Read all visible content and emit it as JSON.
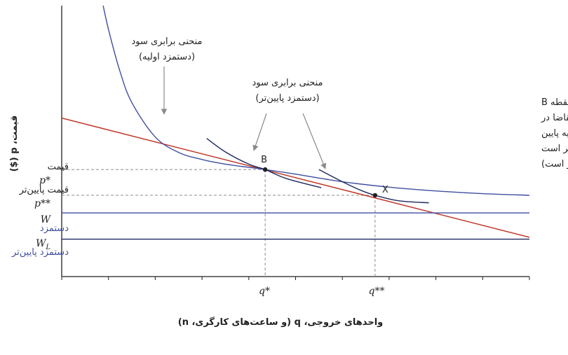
{
  "chart_data": {
    "type": "line",
    "xlabel": "واحدهای خروجی، q (و ساعت‌های کارگری، n)",
    "ylabel": "قیمت، p ($)",
    "xlim": [
      0,
      10
    ],
    "ylim": [
      0,
      10
    ],
    "x_ticks": [
      {
        "label": "q*",
        "value": 4.35
      },
      {
        "label": "q**",
        "value": 6.7
      }
    ],
    "y_ticks": [
      {
        "label": "p*",
        "value": 3.95
      },
      {
        "label": "p**",
        "value": 3.0
      },
      {
        "label": "W",
        "value": 2.35
      },
      {
        "label": "WL",
        "value": 1.38
      }
    ],
    "series": [
      {
        "name": "منحنی تقاضا",
        "role": "demand",
        "color": "#c0392b",
        "x": [
          0,
          10
        ],
        "y": [
          5.85,
          1.45
        ]
      },
      {
        "name": "منحنی برابری سود (دستمزد اولیه)",
        "role": "isoprofit-initial",
        "color": "#3f4fa0",
        "x": [
          0.85,
          1.0,
          1.25,
          1.5,
          2.0,
          2.5,
          3.0,
          3.5,
          4.35,
          5.0,
          6.0,
          7.0,
          8.0,
          9.0,
          10.0
        ],
        "y": [
          10.3,
          9.12,
          7.55,
          6.42,
          5.15,
          4.58,
          4.32,
          4.15,
          3.95,
          3.78,
          3.5,
          3.3,
          3.16,
          3.06,
          3.0
        ]
      },
      {
        "name": "منحنی برابری سود (دستمزد پایین‌تر)",
        "role": "isoprofit-lower",
        "color": "#1e2a5e",
        "x": [
          3.1,
          3.5,
          4.0,
          4.35,
          4.8,
          5.55
        ],
        "y": [
          5.1,
          4.6,
          4.15,
          3.95,
          3.62,
          3.28
        ]
      },
      {
        "name": "منحنی برابری سود (دستمزد پایین‌تر)",
        "role": "isoprofit-lower-2",
        "color": "#1e2a5e",
        "x": [
          5.5,
          6.0,
          6.4,
          6.7,
          7.2,
          7.85
        ],
        "y": [
          3.95,
          3.5,
          3.18,
          3.0,
          2.8,
          2.72
        ]
      },
      {
        "name": "دستمزد",
        "role": "wage",
        "color": "#3f4fa0",
        "x": [
          0,
          10
        ],
        "y": [
          2.35,
          2.35
        ]
      },
      {
        "name": "دستمزد پایین‌تر",
        "role": "lower-wage",
        "color": "#1e2a5e",
        "x": [
          0,
          10
        ],
        "y": [
          1.38,
          1.38
        ]
      }
    ],
    "points": [
      {
        "label": "B",
        "x": 4.35,
        "y": 3.95
      },
      {
        "label": "X",
        "x": 6.7,
        "y": 3.0
      }
    ],
    "annotations": [
      {
        "id": "iso-initial",
        "lines": [
          "منحنی برابری سود",
          "(دستمزد اولیه)"
        ]
      },
      {
        "id": "iso-lower",
        "lines": [
          "منحنی برابری سود",
          "(دستمزد پایین‌تر)"
        ]
      },
      {
        "id": "demand-note",
        "lines": [
          "تقاضای کل پایین در نقطه B",
          "منحنی تقاضا (منحنی تقاضا در",
          "نقطه B در سطح قیمتی اولیه پایین",
          "است؛ اما در نقطه X بالاتر است",
          "زیرا سطح قیمت پایین تر است)"
        ]
      },
      {
        "id": "price-label",
        "lines": [
          "قیمت"
        ]
      },
      {
        "id": "lower-price-label",
        "lines": [
          "قیمت پایین‌تر"
        ]
      },
      {
        "id": "wage-label",
        "lines": [
          "دستمزد"
        ]
      },
      {
        "id": "lower-wage-label",
        "lines": [
          "دستمزد پایین‌تر"
        ]
      }
    ],
    "grid": false,
    "legend": "none"
  }
}
